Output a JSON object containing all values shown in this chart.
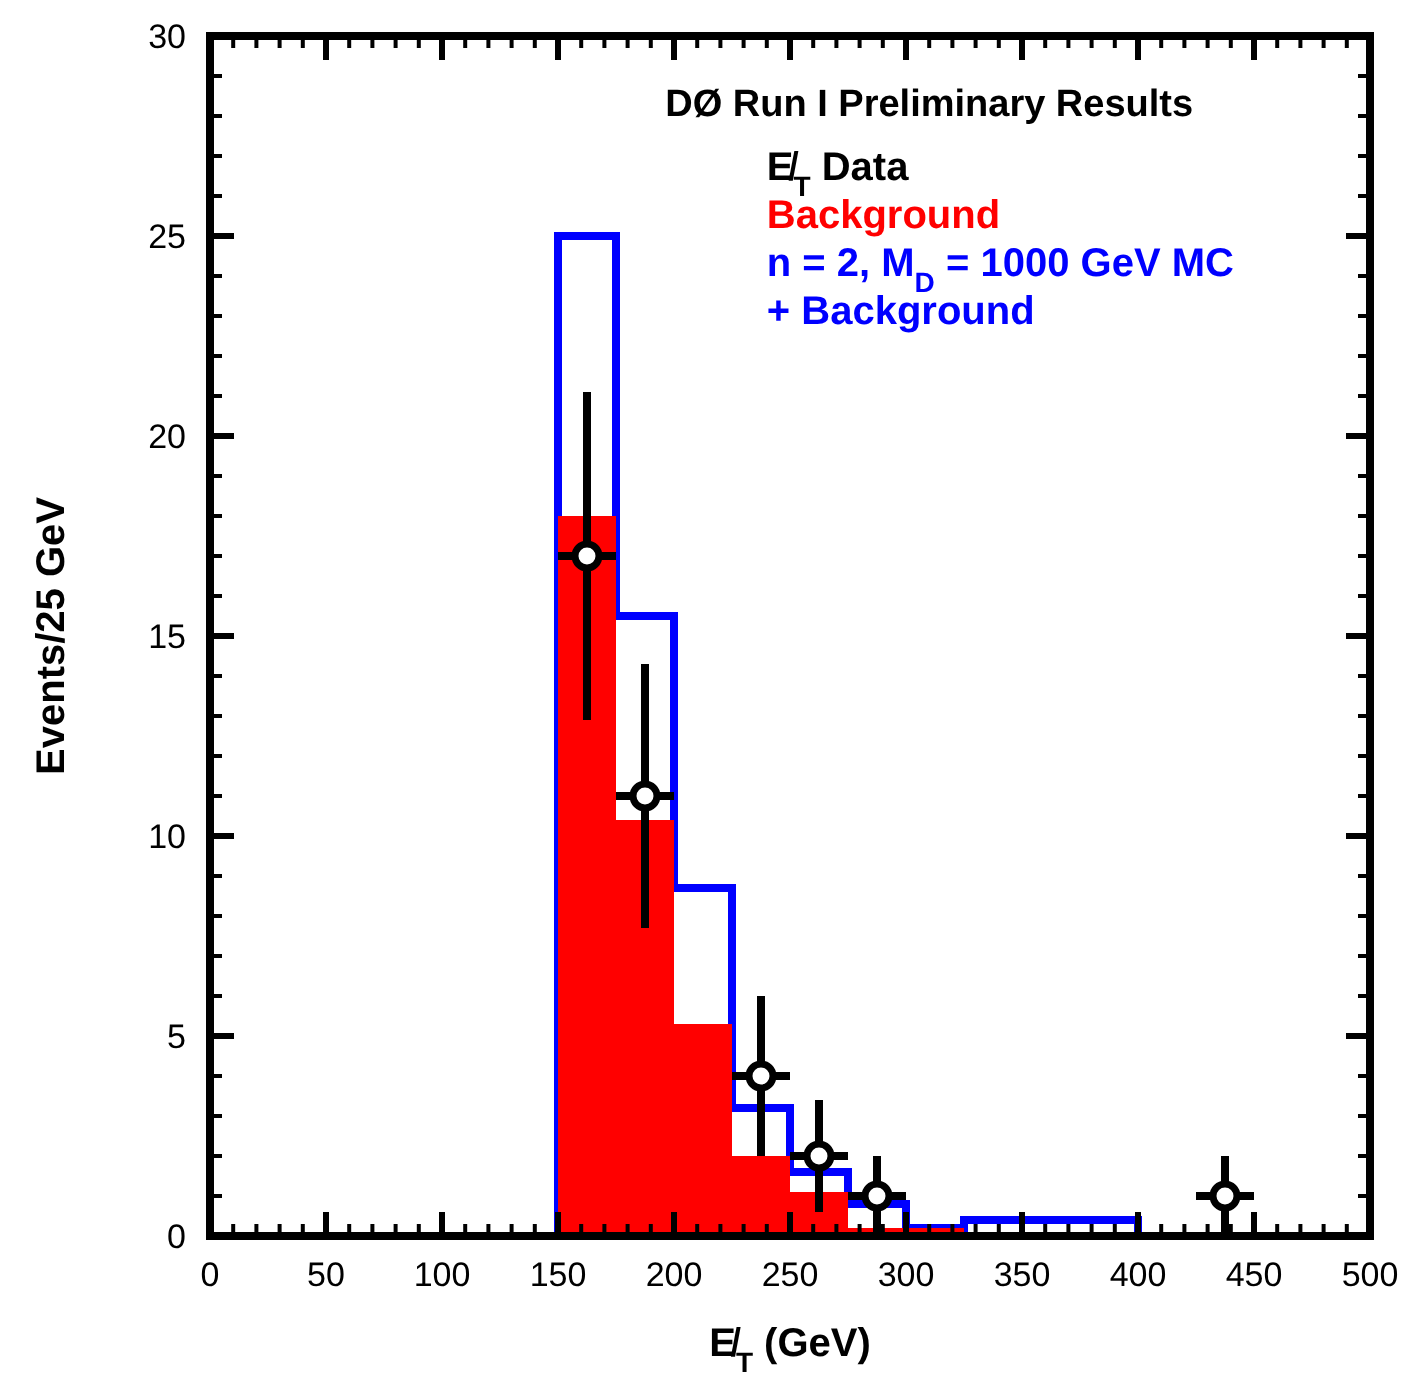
{
  "chart_data": {
    "type": "histogram",
    "title": "DØ Run I Preliminary Results",
    "xlabel": "E̸$_{T}$ (GeV)",
    "ylabel": "Events/25 GeV",
    "bins": [
      150,
      175,
      200,
      225,
      250,
      275,
      300,
      325,
      400
    ],
    "series": [
      {
        "name": "n = 2, M$_{D}$ = 1000 GeV MC + Background",
        "color": "#0000ff",
        "values": [
          25,
          15.5,
          8.7,
          3.2,
          1.6,
          0.8,
          0.2,
          0.4
        ]
      },
      {
        "name": "Background",
        "color": "#ff0000",
        "values": [
          18,
          10.4,
          5.3,
          2,
          1.1,
          0.2,
          0.2,
          0
        ]
      },
      {
        "name": "E̸$_{T}$ Data",
        "type": "scatter",
        "color": "#000000",
        "x": [
          162.5,
          187.5,
          237.5,
          262.5,
          287.5,
          437.5
        ],
        "values": [
          17,
          11,
          4,
          2,
          1,
          1
        ],
        "errors": [
          4.1,
          3.3,
          2,
          1.4,
          1,
          1
        ],
        "xerrors": [
          12.5,
          12.5,
          12.5,
          12.5,
          12.5,
          12.5
        ],
        "marker": "circle"
      }
    ],
    "xlim": [
      0,
      500
    ],
    "xticks": [
      0,
      50,
      100,
      150,
      200,
      250,
      300,
      350,
      400,
      450,
      500
    ],
    "ylim": [
      0,
      30
    ],
    "yticks": [
      0,
      5,
      10,
      15,
      20,
      25,
      30
    ],
    "legend": "top right",
    "grid": false
  }
}
